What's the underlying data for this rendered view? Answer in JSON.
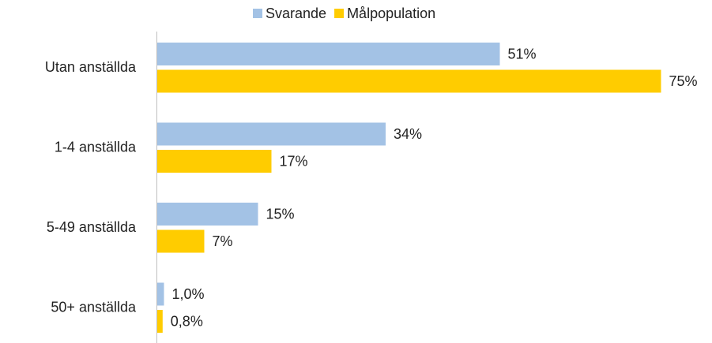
{
  "chart_data": {
    "type": "bar",
    "orientation": "horizontal",
    "categories": [
      "Utan anställda",
      "1-4 anställda",
      "5-49 anställda",
      "50+ anställda"
    ],
    "series": [
      {
        "name": "Svarande",
        "color": "#a3c2e5",
        "values": [
          51,
          34,
          15,
          1.0
        ],
        "value_labels": [
          "51%",
          "34%",
          "15%",
          "1,0%"
        ]
      },
      {
        "name": "Målpopulation",
        "color": "#ffcc00",
        "values": [
          75,
          17,
          7,
          0.8
        ],
        "value_labels": [
          "75%",
          "17%",
          "7%",
          "0,8%"
        ]
      }
    ],
    "legend": "top"
  }
}
